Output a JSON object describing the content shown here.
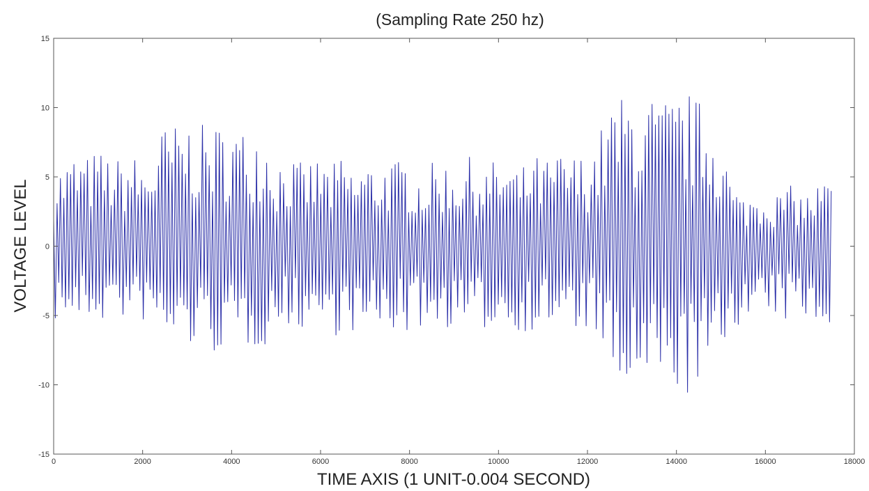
{
  "chart_data": {
    "type": "line",
    "title": "(Sampling Rate 250 hz)",
    "xlabel": "TIME AXIS (1 UNIT-0.004 SECOND)",
    "ylabel": "VOLTAGE LEVEL",
    "xlim": [
      0,
      18000
    ],
    "ylim": [
      -15,
      15
    ],
    "x_ticks": [
      0,
      2000,
      4000,
      6000,
      8000,
      10000,
      12000,
      14000,
      16000,
      18000
    ],
    "y_ticks": [
      -15,
      -10,
      -5,
      0,
      5,
      10,
      15
    ],
    "grid": false,
    "legend": "none",
    "line_color": "#2b2fa8",
    "series": [
      {
        "x": [
          0,
          250,
          500,
          750,
          1000,
          1250,
          1500,
          1750,
          2000,
          2250,
          2500,
          2750,
          3000,
          3250,
          3500,
          3750,
          4000,
          4250,
          4500,
          4750,
          5000,
          5250,
          5500,
          5750,
          6000,
          6250,
          6500,
          6750,
          7000,
          7250,
          7500,
          7750,
          8000,
          8250,
          8500,
          8750,
          9000,
          9250,
          9500,
          9750,
          10000,
          10250,
          10500,
          10750,
          11000,
          11250,
          11500,
          11750,
          12000,
          12250,
          12500,
          12750,
          13000,
          13250,
          13500,
          13750,
          14000,
          14250,
          14500,
          14750,
          15000,
          15250,
          15500,
          15750,
          16000,
          16250,
          16500,
          16750,
          17000,
          17250,
          17500
        ],
        "y_max": [
          5.5,
          6.2,
          6.8,
          6.5,
          7.0,
          6.6,
          6.3,
          6.8,
          6.0,
          6.8,
          9.0,
          8.8,
          9.3,
          8.6,
          9.0,
          8.8,
          9.1,
          8.5,
          9.0,
          8.7,
          6.5,
          6.8,
          6.0,
          6.2,
          6.5,
          5.8,
          6.6,
          5.5,
          6.2,
          6.0,
          6.4,
          6.2,
          6.5,
          5.4,
          6.0,
          6.3,
          5.9,
          6.6,
          6.2,
          5.8,
          6.5,
          6.0,
          5.5,
          6.8,
          6.2,
          6.6,
          7.0,
          6.5,
          6.9,
          8.0,
          10.5,
          10.8,
          11.4,
          10.5,
          11.0,
          10.7,
          10.9,
          11.2,
          10.6,
          10.0,
          8.5,
          4.5,
          3.6,
          4.0,
          4.2,
          3.8,
          4.5,
          4.0,
          3.9,
          4.8,
          5.0
        ],
        "y_min": [
          -5.5,
          -5.2,
          -5.8,
          -5.3,
          -5.8,
          -5.0,
          -5.2,
          -5.8,
          -5.5,
          -6.0,
          -7.2,
          -7.0,
          -7.5,
          -7.2,
          -8.2,
          -7.5,
          -8.0,
          -7.4,
          -7.5,
          -7.2,
          -6.0,
          -5.8,
          -6.2,
          -5.5,
          -6.0,
          -6.2,
          -6.8,
          -6.2,
          -7.0,
          -6.5,
          -6.0,
          -6.3,
          -6.5,
          -5.9,
          -6.2,
          -6.0,
          -5.8,
          -6.2,
          -6.5,
          -6.0,
          -5.8,
          -6.3,
          -6.0,
          -6.5,
          -5.5,
          -6.2,
          -6.0,
          -6.5,
          -6.0,
          -6.5,
          -10.8,
          -11.0,
          -10.5,
          -11.2,
          -10.8,
          -10.6,
          -10.5,
          -10.9,
          -10.2,
          -10.0,
          -8.5,
          -5.5,
          -6.0,
          -5.4,
          -5.8,
          -5.2,
          -5.6,
          -5.0,
          -5.5,
          -5.5,
          -5.6
        ]
      }
    ]
  }
}
